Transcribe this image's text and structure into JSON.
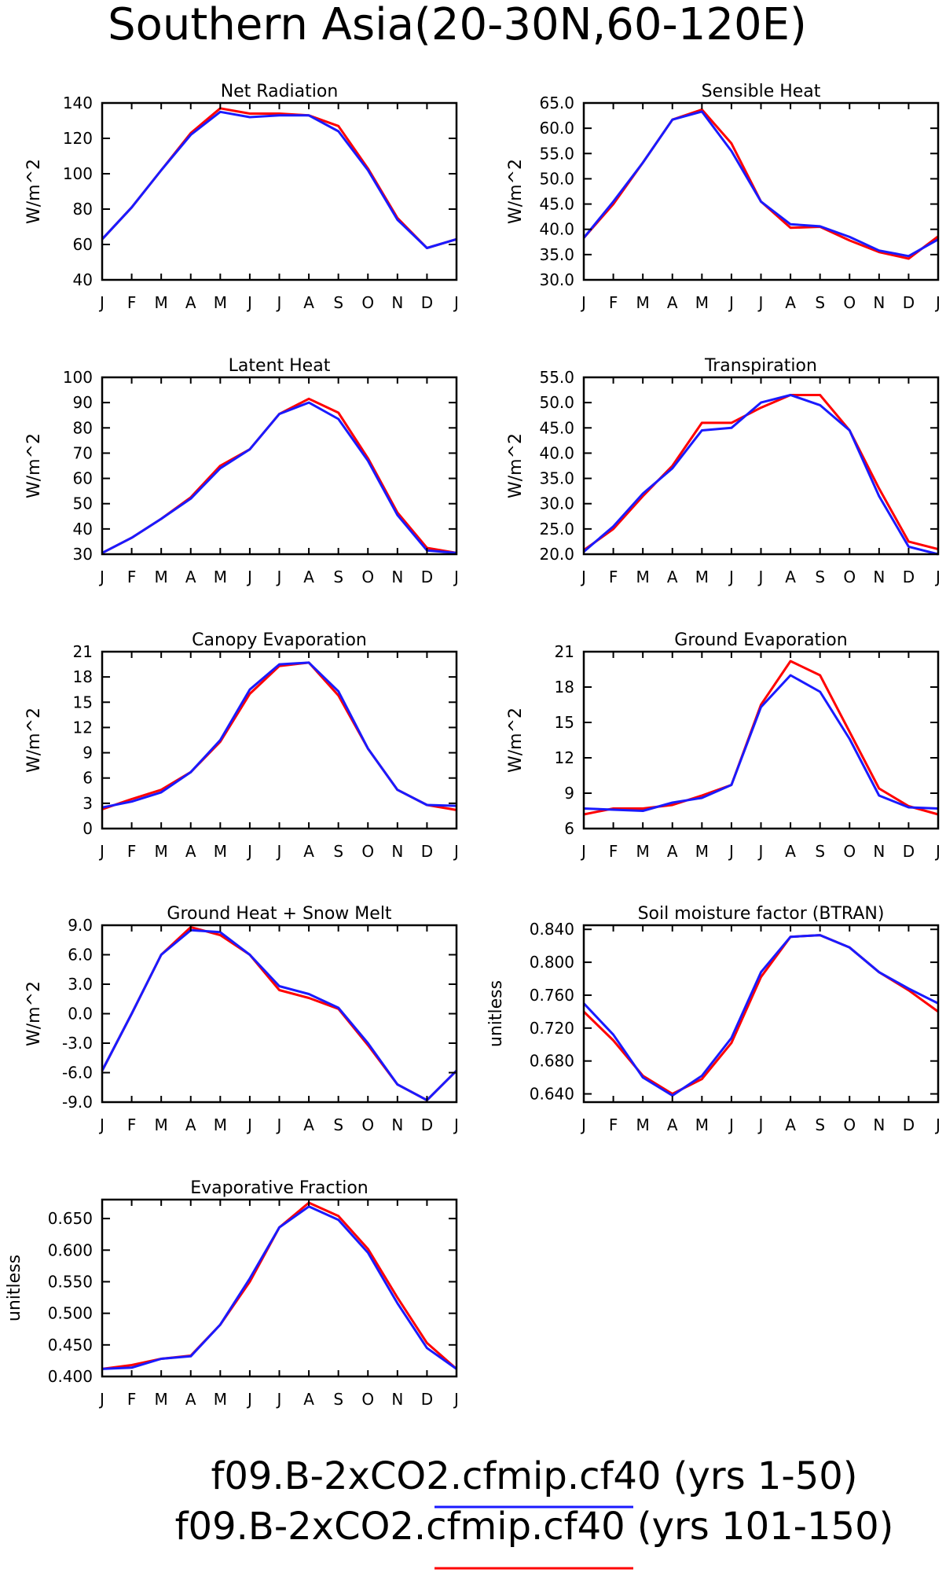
{
  "title": "Southern Asia(20-30N,60-120E)",
  "series_colors": {
    "blue": "#1a1aff",
    "red": "#ff0000"
  },
  "legend": [
    {
      "label": "f09.B-2xCO2.cfmip.cf40 (yrs 1-50)",
      "color": "#1a1aff"
    },
    {
      "label": "f09.B-2xCO2.cfmip.cf40 (yrs 101-150)",
      "color": "#ff0000"
    }
  ],
  "chart_data": [
    {
      "type": "line",
      "title": "Net Radiation",
      "ylabel": "W/m^2",
      "categories": [
        "J",
        "F",
        "M",
        "A",
        "M",
        "J",
        "J",
        "A",
        "S",
        "O",
        "N",
        "D",
        "J"
      ],
      "ylim": [
        40,
        140
      ],
      "yticks": [
        "40",
        "60",
        "80",
        "100",
        "120",
        "140"
      ],
      "series": [
        {
          "color": "blue",
          "values": [
            63,
            81,
            102,
            122,
            135,
            132,
            133,
            133,
            124,
            102,
            74,
            58,
            63
          ]
        },
        {
          "color": "red",
          "values": [
            63,
            81,
            102,
            123,
            137,
            134,
            134,
            133,
            127,
            103,
            75,
            58,
            63
          ]
        }
      ]
    },
    {
      "type": "line",
      "title": "Sensible Heat",
      "ylabel": "W/m^2",
      "categories": [
        "J",
        "F",
        "M",
        "A",
        "M",
        "J",
        "J",
        "A",
        "S",
        "O",
        "N",
        "D",
        "J"
      ],
      "ylim": [
        30,
        65
      ],
      "yticks": [
        "30.0",
        "35.0",
        "40.0",
        "45.0",
        "50.0",
        "55.0",
        "60.0",
        "65.0"
      ],
      "series": [
        {
          "color": "blue",
          "values": [
            38.3,
            45.5,
            53.2,
            61.7,
            63.3,
            55.5,
            45.5,
            41.0,
            40.6,
            38.5,
            35.8,
            34.7,
            38.0
          ]
        },
        {
          "color": "red",
          "values": [
            38.3,
            45.0,
            53.2,
            61.7,
            63.7,
            57.0,
            45.5,
            40.3,
            40.5,
            37.8,
            35.5,
            34.2,
            38.6
          ]
        }
      ]
    },
    {
      "type": "line",
      "title": "Latent Heat",
      "ylabel": "W/m^2",
      "categories": [
        "J",
        "F",
        "M",
        "A",
        "M",
        "J",
        "J",
        "A",
        "S",
        "O",
        "N",
        "D",
        "J"
      ],
      "ylim": [
        30,
        100
      ],
      "yticks": [
        "30",
        "40",
        "50",
        "60",
        "70",
        "80",
        "90",
        "100"
      ],
      "series": [
        {
          "color": "blue",
          "values": [
            30.5,
            36.5,
            44.0,
            52.0,
            64.0,
            71.5,
            85.5,
            90.0,
            83.5,
            67.0,
            45.5,
            31.5,
            30.5
          ]
        },
        {
          "color": "red",
          "values": [
            30.5,
            36.5,
            44.0,
            52.5,
            65.0,
            71.5,
            85.5,
            91.5,
            86.0,
            68.0,
            46.5,
            32.5,
            30.5
          ]
        }
      ]
    },
    {
      "type": "line",
      "title": "Transpiration",
      "ylabel": "W/m^2",
      "categories": [
        "J",
        "F",
        "M",
        "A",
        "M",
        "J",
        "J",
        "A",
        "S",
        "O",
        "N",
        "D",
        "J"
      ],
      "ylim": [
        20,
        55
      ],
      "yticks": [
        "20.0",
        "25.0",
        "30.0",
        "35.0",
        "40.0",
        "45.0",
        "50.0",
        "55.0"
      ],
      "series": [
        {
          "color": "blue",
          "values": [
            20.5,
            25.5,
            32.0,
            37.0,
            44.5,
            45.0,
            50.0,
            51.5,
            49.5,
            44.5,
            31.5,
            21.5,
            20.0
          ]
        },
        {
          "color": "red",
          "values": [
            20.8,
            25.0,
            31.5,
            37.5,
            46.0,
            46.0,
            49.0,
            51.5,
            51.5,
            44.5,
            33.0,
            22.5,
            21.0
          ]
        }
      ]
    },
    {
      "type": "line",
      "title": "Canopy Evaporation",
      "ylabel": "W/m^2",
      "categories": [
        "J",
        "F",
        "M",
        "A",
        "M",
        "J",
        "J",
        "A",
        "S",
        "O",
        "N",
        "D",
        "J"
      ],
      "ylim": [
        0,
        21
      ],
      "yticks": [
        "0",
        "3",
        "6",
        "9",
        "12",
        "15",
        "18",
        "21"
      ],
      "series": [
        {
          "color": "blue",
          "values": [
            2.5,
            3.2,
            4.3,
            6.7,
            10.5,
            16.5,
            19.5,
            19.7,
            16.3,
            9.5,
            4.6,
            2.8,
            2.7
          ]
        },
        {
          "color": "red",
          "values": [
            2.3,
            3.5,
            4.6,
            6.7,
            10.3,
            16.0,
            19.3,
            19.7,
            15.8,
            9.5,
            4.6,
            2.8,
            2.2
          ]
        }
      ]
    },
    {
      "type": "line",
      "title": "Ground Evaporation",
      "ylabel": "W/m^2",
      "categories": [
        "J",
        "F",
        "M",
        "A",
        "M",
        "J",
        "J",
        "A",
        "S",
        "O",
        "N",
        "D",
        "J"
      ],
      "ylim": [
        6,
        21
      ],
      "yticks": [
        "6",
        "9",
        "12",
        "15",
        "18",
        "21"
      ],
      "series": [
        {
          "color": "blue",
          "values": [
            7.7,
            7.6,
            7.5,
            8.2,
            8.6,
            9.7,
            16.3,
            19.0,
            17.6,
            13.6,
            8.8,
            7.8,
            7.7
          ]
        },
        {
          "color": "red",
          "values": [
            7.2,
            7.7,
            7.7,
            8.0,
            8.8,
            9.7,
            16.5,
            20.2,
            19.0,
            14.2,
            9.4,
            7.9,
            7.2
          ]
        }
      ]
    },
    {
      "type": "line",
      "title": "Ground Heat + Snow Melt",
      "ylabel": "W/m^2",
      "categories": [
        "J",
        "F",
        "M",
        "A",
        "M",
        "J",
        "J",
        "A",
        "S",
        "O",
        "N",
        "D",
        "J"
      ],
      "ylim": [
        -9,
        9
      ],
      "yticks": [
        "-9.0",
        "-6.0",
        "-3.0",
        "0.0",
        "3.0",
        "6.0",
        "9.0"
      ],
      "series": [
        {
          "color": "blue",
          "values": [
            -5.8,
            0.0,
            6.0,
            8.5,
            8.3,
            6.0,
            2.8,
            2.0,
            0.6,
            -3.0,
            -7.2,
            -8.8,
            -5.8
          ]
        },
        {
          "color": "red",
          "values": [
            -5.8,
            0.0,
            6.0,
            8.8,
            8.0,
            6.0,
            2.4,
            1.6,
            0.5,
            -3.2,
            -7.2,
            -8.8,
            -5.8
          ]
        }
      ]
    },
    {
      "type": "line",
      "title": "Soil moisture factor (BTRAN)",
      "ylabel": "unitless",
      "categories": [
        "J",
        "F",
        "M",
        "A",
        "M",
        "J",
        "J",
        "A",
        "S",
        "O",
        "N",
        "D",
        "J"
      ],
      "ylim": [
        0.63,
        0.845
      ],
      "yticks": [
        "0.640",
        "0.680",
        "0.720",
        "0.760",
        "0.800",
        "0.840"
      ],
      "series": [
        {
          "color": "blue",
          "values": [
            0.75,
            0.712,
            0.66,
            0.638,
            0.662,
            0.708,
            0.788,
            0.831,
            0.833,
            0.818,
            0.788,
            0.768,
            0.75
          ]
        },
        {
          "color": "red",
          "values": [
            0.74,
            0.705,
            0.662,
            0.64,
            0.658,
            0.702,
            0.782,
            0.831,
            0.833,
            0.818,
            0.788,
            0.766,
            0.74
          ]
        }
      ]
    },
    {
      "type": "line",
      "title": "Evaporative Fraction",
      "ylabel": "unitless",
      "categories": [
        "J",
        "F",
        "M",
        "A",
        "M",
        "J",
        "J",
        "A",
        "S",
        "O",
        "N",
        "D",
        "J"
      ],
      "ylim": [
        0.4,
        0.68
      ],
      "yticks": [
        "0.400",
        "0.450",
        "0.500",
        "0.550",
        "0.600",
        "0.650"
      ],
      "series": [
        {
          "color": "blue",
          "values": [
            0.412,
            0.414,
            0.428,
            0.432,
            0.482,
            0.555,
            0.636,
            0.669,
            0.648,
            0.596,
            0.516,
            0.445,
            0.412
          ]
        },
        {
          "color": "red",
          "values": [
            0.412,
            0.418,
            0.428,
            0.433,
            0.482,
            0.55,
            0.636,
            0.675,
            0.654,
            0.602,
            0.525,
            0.453,
            0.412
          ]
        }
      ]
    }
  ]
}
